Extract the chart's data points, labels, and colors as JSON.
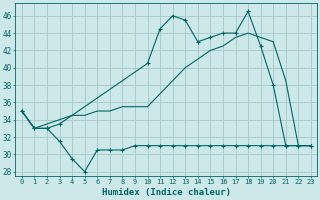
{
  "bg_color": "#cce8e8",
  "grid_color": "#aacccc",
  "line_color": "#006666",
  "xlabel": "Humidex (Indice chaleur)",
  "ylim": [
    27.5,
    47.5
  ],
  "xlim": [
    -0.5,
    23.5
  ],
  "yticks": [
    28,
    30,
    32,
    34,
    36,
    38,
    40,
    42,
    44,
    46
  ],
  "xticks": [
    0,
    1,
    2,
    3,
    4,
    5,
    6,
    7,
    8,
    9,
    10,
    11,
    12,
    13,
    14,
    15,
    16,
    17,
    18,
    19,
    20,
    21,
    22,
    23
  ],
  "line_bottom_x": [
    0,
    1,
    2,
    3,
    4,
    5,
    6,
    7,
    8,
    9,
    10,
    11,
    12,
    13,
    14,
    15,
    16,
    17,
    18,
    19,
    20,
    21,
    22,
    23
  ],
  "line_bottom_y": [
    35.0,
    33.0,
    33.0,
    31.5,
    29.5,
    28.0,
    30.5,
    30.5,
    30.5,
    31.0,
    31.0,
    31.0,
    31.0,
    31.0,
    31.0,
    31.0,
    31.0,
    31.0,
    31.0,
    31.0,
    31.0,
    31.0,
    31.0,
    31.0
  ],
  "line_upper_x": [
    0,
    1,
    2,
    3,
    10,
    11,
    12,
    13,
    14,
    15,
    16,
    17,
    18,
    19,
    20,
    21,
    22,
    23
  ],
  "line_upper_y": [
    35.0,
    33.0,
    33.0,
    33.5,
    40.5,
    44.5,
    46.0,
    45.5,
    43.0,
    43.5,
    44.0,
    44.0,
    46.5,
    42.5,
    38.0,
    31.0,
    31.0,
    31.0
  ],
  "line_diag_x": [
    0,
    1,
    2,
    3,
    4,
    5,
    6,
    7,
    8,
    9,
    10,
    11,
    12,
    13,
    14,
    15,
    16,
    17,
    18,
    19,
    20,
    21,
    22,
    23
  ],
  "line_diag_y": [
    35.0,
    33.0,
    33.5,
    34.0,
    34.5,
    34.5,
    35.0,
    35.0,
    35.5,
    35.5,
    35.5,
    37.0,
    38.5,
    40.0,
    41.0,
    42.0,
    42.5,
    43.5,
    44.0,
    43.5,
    43.0,
    38.5,
    31.0,
    31.0
  ]
}
